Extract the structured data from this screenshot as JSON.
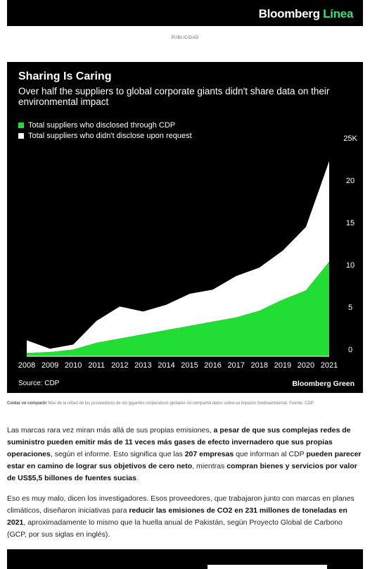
{
  "header": {
    "logo_main": "Bloomberg",
    "logo_accent": "Línea"
  },
  "ad_label": "PUBLICIDAD",
  "chart_data": {
    "type": "area",
    "title": "Sharing Is Caring",
    "subtitle": "Over half the suppliers to global corporate giants didn't share data on their environmental impact",
    "x": [
      2008,
      2009,
      2010,
      2011,
      2012,
      2013,
      2014,
      2015,
      2016,
      2017,
      2018,
      2019,
      2020,
      2021
    ],
    "series": [
      {
        "name": "Total suppliers who disclosed through CDP",
        "color": "#22dd33",
        "values": [
          0.4,
          0.5,
          0.8,
          1.6,
          2.1,
          2.6,
          3.1,
          3.6,
          4.1,
          4.6,
          5.4,
          6.7,
          7.8,
          11.2
        ]
      },
      {
        "name": "Total suppliers who didn't disclose upon request",
        "color": "#ffffff",
        "values": [
          1.5,
          0.4,
          0.6,
          2.6,
          3.8,
          2.7,
          3.0,
          3.8,
          3.8,
          4.9,
          5.1,
          5.8,
          7.5,
          11.9
        ]
      }
    ],
    "y_ticks": [
      "0",
      "5",
      "10",
      "15",
      "20",
      "25K"
    ],
    "ylim": [
      0,
      25
    ],
    "xlabel": "",
    "ylabel": "",
    "grid": false,
    "legend": "top-left",
    "source": "Source: CDP",
    "brand": "Bloomberg Green"
  },
  "caption": {
    "lead": "Coldar ve compartir",
    "text": "Más de la mitad de los proveedores de los gigantes corporativos globales no compartió datos sobre su impacto medioambiental. Fuente: CDP"
  },
  "paragraphs": [
    [
      {
        "t": "Las marcas rara vez miran más allá de sus propias emisiones, ",
        "b": false
      },
      {
        "t": "a pesar de que sus complejas redes de suministro pueden emitir más de 11 veces más gases de efecto invernadero que sus propias operaciones",
        "b": true
      },
      {
        "t": ", según el informe. Esto significa que las ",
        "b": false
      },
      {
        "t": "207 empresas",
        "b": true
      },
      {
        "t": " que informan al CDP ",
        "b": false
      },
      {
        "t": "pueden parecer estar en camino de lograr sus objetivos de cero neto",
        "b": true
      },
      {
        "t": ", mientras ",
        "b": false
      },
      {
        "t": "compran bienes y servicios por valor de US$5,5 billones de fuentes sucias",
        "b": true
      },
      {
        "t": ".",
        "b": false
      }
    ],
    [
      {
        "t": "Eso es muy malo, dicen los investigadores. Esos proveedores, que trabajaron junto con marcas en planes climáticos, diseñaron iniciativas para ",
        "b": false
      },
      {
        "t": "reducir las emisiones de CO2 en 231 millones de toneladas en 2021",
        "b": true
      },
      {
        "t": ", aproximadamente lo mismo que la huella anual de Pakistán, según Proyecto Global de Carbono (GCP, por sus siglas en inglés).",
        "b": false
      }
    ]
  ]
}
